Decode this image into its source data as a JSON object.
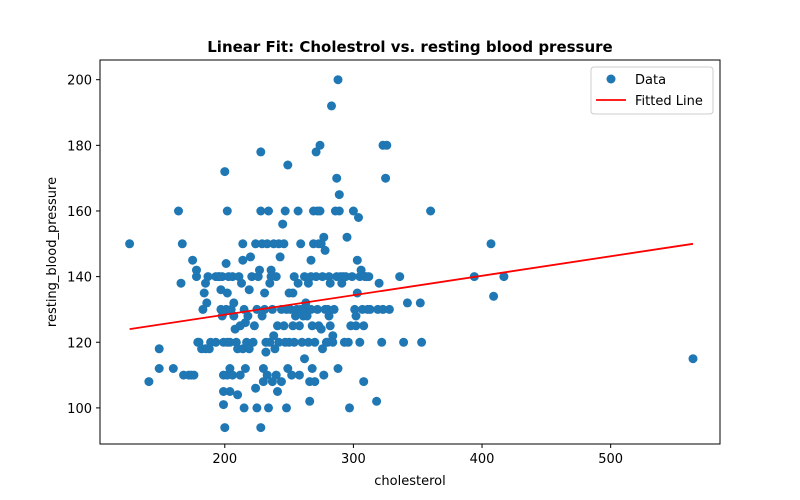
{
  "chart_data": {
    "type": "scatter",
    "title": "Linear Fit: Cholestrol vs. resting blood pressure",
    "xlabel": "cholesterol",
    "ylabel": "resting_blood_pressure",
    "xlim": [
      103,
      585
    ],
    "ylim": [
      89,
      206
    ],
    "xticks": [
      200,
      300,
      400,
      500
    ],
    "yticks": [
      100,
      120,
      140,
      160,
      180,
      200
    ],
    "grid": false,
    "legend_position": "top-right",
    "colors": {
      "data": "#1f77b4",
      "fit": "#ff0000"
    },
    "series": [
      {
        "name": "Data",
        "kind": "scatter",
        "points": [
          [
            126,
            150
          ],
          [
            141,
            108
          ],
          [
            149,
            112
          ],
          [
            149,
            118
          ],
          [
            160,
            112
          ],
          [
            164,
            160
          ],
          [
            166,
            138
          ],
          [
            167,
            150
          ],
          [
            168,
            110
          ],
          [
            172,
            110
          ],
          [
            174,
            110
          ],
          [
            175,
            145
          ],
          [
            176,
            110
          ],
          [
            178,
            140
          ],
          [
            178,
            142
          ],
          [
            179,
            120
          ],
          [
            180,
            120
          ],
          [
            182,
            118
          ],
          [
            183,
            130
          ],
          [
            184,
            135
          ],
          [
            185,
            118
          ],
          [
            185,
            138
          ],
          [
            186,
            132
          ],
          [
            187,
            140
          ],
          [
            188,
            118
          ],
          [
            189,
            120
          ],
          [
            193,
            120
          ],
          [
            193,
            140
          ],
          [
            195,
            140
          ],
          [
            196,
            140
          ],
          [
            197,
            130
          ],
          [
            197,
            136
          ],
          [
            198,
            128
          ],
          [
            198,
            140
          ],
          [
            199,
            101
          ],
          [
            199,
            105
          ],
          [
            199,
            110
          ],
          [
            199,
            120
          ],
          [
            199,
            129
          ],
          [
            200,
            94
          ],
          [
            200,
            172
          ],
          [
            201,
            144
          ],
          [
            201,
            130
          ],
          [
            202,
            160
          ],
          [
            202,
            110
          ],
          [
            202,
            120
          ],
          [
            202,
            135
          ],
          [
            203,
            140
          ],
          [
            204,
            105
          ],
          [
            204,
            112
          ],
          [
            204,
            120
          ],
          [
            205,
            130
          ],
          [
            206,
            110
          ],
          [
            206,
            140
          ],
          [
            207,
            128
          ],
          [
            207,
            132
          ],
          [
            208,
            124
          ],
          [
            209,
            120
          ],
          [
            210,
            104
          ],
          [
            210,
            118
          ],
          [
            211,
            140
          ],
          [
            212,
            125
          ],
          [
            212,
            110
          ],
          [
            213,
            138
          ],
          [
            214,
            145
          ],
          [
            214,
            150
          ],
          [
            214,
            118
          ],
          [
            215,
            130
          ],
          [
            215,
            100
          ],
          [
            216,
            126
          ],
          [
            216,
            112
          ],
          [
            217,
            120
          ],
          [
            218,
            128
          ],
          [
            219,
            136
          ],
          [
            219,
            118
          ],
          [
            220,
            146
          ],
          [
            221,
            140
          ],
          [
            222,
            120
          ],
          [
            223,
            125
          ],
          [
            224,
            150
          ],
          [
            224,
            106
          ],
          [
            225,
            130
          ],
          [
            225,
            100
          ],
          [
            226,
            140
          ],
          [
            227,
            142
          ],
          [
            228,
            94
          ],
          [
            228,
            178
          ],
          [
            228,
            160
          ],
          [
            229,
            150
          ],
          [
            229,
            128
          ],
          [
            230,
            108
          ],
          [
            230,
            112
          ],
          [
            231,
            130
          ],
          [
            231,
            135
          ],
          [
            232,
            117
          ],
          [
            232,
            120
          ],
          [
            233,
            150
          ],
          [
            233,
            110
          ],
          [
            234,
            100
          ],
          [
            234,
            160
          ],
          [
            235,
            120
          ],
          [
            235,
            138
          ],
          [
            236,
            140
          ],
          [
            236,
            142
          ],
          [
            237,
            130
          ],
          [
            237,
            108
          ],
          [
            238,
            150
          ],
          [
            238,
            122
          ],
          [
            239,
            118
          ],
          [
            240,
            140
          ],
          [
            240,
            110
          ],
          [
            241,
            125
          ],
          [
            241,
            105
          ],
          [
            242,
            150
          ],
          [
            242,
            120
          ],
          [
            243,
            146
          ],
          [
            244,
            130
          ],
          [
            244,
            108
          ],
          [
            245,
            156
          ],
          [
            246,
            150
          ],
          [
            246,
            125
          ],
          [
            247,
            160
          ],
          [
            247,
            120
          ],
          [
            248,
            130
          ],
          [
            248,
            100
          ],
          [
            249,
            174
          ],
          [
            249,
            112
          ],
          [
            250,
            135
          ],
          [
            250,
            120
          ],
          [
            251,
            130
          ],
          [
            252,
            110
          ],
          [
            253,
            135
          ],
          [
            253,
            125
          ],
          [
            254,
            140
          ],
          [
            254,
            120
          ],
          [
            255,
            128
          ],
          [
            256,
            130
          ],
          [
            257,
            160
          ],
          [
            257,
            138
          ],
          [
            258,
            125
          ],
          [
            258,
            110
          ],
          [
            259,
            130
          ],
          [
            259,
            150
          ],
          [
            260,
            120
          ],
          [
            261,
            128
          ],
          [
            262,
            115
          ],
          [
            262,
            140
          ],
          [
            263,
            132
          ],
          [
            264,
            130
          ],
          [
            264,
            128
          ],
          [
            265,
            138
          ],
          [
            265,
            120
          ],
          [
            266,
            108
          ],
          [
            266,
            102
          ],
          [
            267,
            145
          ],
          [
            267,
            140
          ],
          [
            267,
            130
          ],
          [
            268,
            125
          ],
          [
            268,
            112
          ],
          [
            269,
            160
          ],
          [
            269,
            150
          ],
          [
            270,
            120
          ],
          [
            270,
            108
          ],
          [
            271,
            178
          ],
          [
            271,
            140
          ],
          [
            272,
            130
          ],
          [
            272,
            160
          ],
          [
            273,
            150
          ],
          [
            273,
            125
          ],
          [
            274,
            180
          ],
          [
            274,
            160
          ],
          [
            275,
            150
          ],
          [
            275,
            124
          ],
          [
            276,
            140
          ],
          [
            276,
            118
          ],
          [
            277,
            152
          ],
          [
            277,
            110
          ],
          [
            278,
            130
          ],
          [
            278,
            148
          ],
          [
            279,
            120
          ],
          [
            280,
            130
          ],
          [
            280,
            120
          ],
          [
            281,
            128
          ],
          [
            281,
            140
          ],
          [
            282,
            125
          ],
          [
            282,
            138
          ],
          [
            283,
            192
          ],
          [
            284,
            122
          ],
          [
            284,
            120
          ],
          [
            285,
            130
          ],
          [
            286,
            160
          ],
          [
            287,
            140
          ],
          [
            287,
            170
          ],
          [
            288,
            200
          ],
          [
            288,
            112
          ],
          [
            289,
            165
          ],
          [
            289,
            160
          ],
          [
            290,
            140
          ],
          [
            291,
            138
          ],
          [
            292,
            140
          ],
          [
            293,
            120
          ],
          [
            294,
            140
          ],
          [
            295,
            152
          ],
          [
            296,
            120
          ],
          [
            297,
            100
          ],
          [
            298,
            125
          ],
          [
            299,
            140
          ],
          [
            300,
            160
          ],
          [
            301,
            130
          ],
          [
            302,
            125
          ],
          [
            302,
            128
          ],
          [
            303,
            135
          ],
          [
            303,
            145
          ],
          [
            304,
            158
          ],
          [
            305,
            140
          ],
          [
            305,
            120
          ],
          [
            306,
            142
          ],
          [
            307,
            130
          ],
          [
            308,
            125
          ],
          [
            308,
            108
          ],
          [
            309,
            140
          ],
          [
            310,
            140
          ],
          [
            311,
            130
          ],
          [
            312,
            140
          ],
          [
            313,
            130
          ],
          [
            318,
            102
          ],
          [
            319,
            130
          ],
          [
            320,
            138
          ],
          [
            322,
            120
          ],
          [
            323,
            180
          ],
          [
            323,
            130
          ],
          [
            325,
            170
          ],
          [
            326,
            180
          ],
          [
            328,
            130
          ],
          [
            336,
            140
          ],
          [
            339,
            120
          ],
          [
            342,
            132
          ],
          [
            352,
            132
          ],
          [
            353,
            120
          ],
          [
            360,
            160
          ],
          [
            394,
            140
          ],
          [
            407,
            150
          ],
          [
            409,
            134
          ],
          [
            417,
            140
          ],
          [
            564,
            115
          ]
        ]
      },
      {
        "name": "Fitted Line",
        "kind": "line",
        "points": [
          [
            126,
            124
          ],
          [
            564,
            150
          ]
        ]
      }
    ]
  }
}
